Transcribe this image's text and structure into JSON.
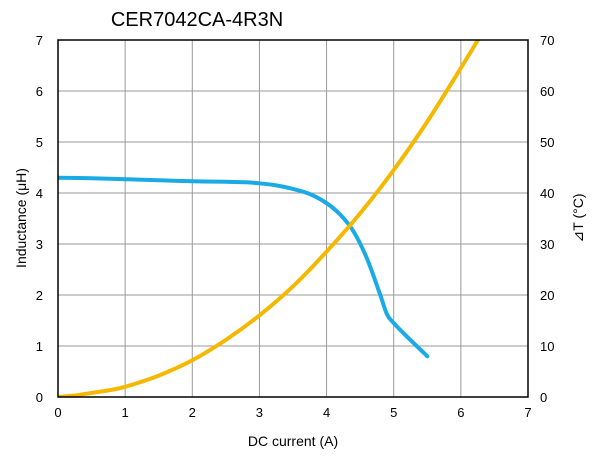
{
  "chart_data": {
    "type": "line",
    "title": "CER7042CA-4R3N",
    "xlabel": "DC current (A)",
    "ylabel": "Inductance (μH)",
    "y2label": "⊿T (°C)",
    "xlim": [
      0,
      7
    ],
    "ylim": [
      0,
      7
    ],
    "y2lim": [
      0,
      70
    ],
    "x_ticks": [
      "0",
      "1",
      "2",
      "3",
      "4",
      "5",
      "6",
      "7"
    ],
    "y_ticks": [
      "0",
      "1",
      "2",
      "3",
      "4",
      "5",
      "6",
      "7"
    ],
    "y2_ticks": [
      "0",
      "10",
      "20",
      "30",
      "40",
      "50",
      "60",
      "70"
    ],
    "grid": true,
    "series": [
      {
        "axis": "left",
        "color": "#1aaae6",
        "x": [
          0,
          0.5,
          1,
          1.5,
          2,
          2.5,
          2.8,
          3.0,
          3.25,
          3.5,
          3.75,
          4.0,
          4.2,
          4.4,
          4.6,
          4.8,
          4.9,
          5.0,
          5.2,
          5.5
        ],
        "y": [
          4.3,
          4.29,
          4.27,
          4.25,
          4.23,
          4.22,
          4.21,
          4.19,
          4.15,
          4.08,
          3.98,
          3.8,
          3.58,
          3.25,
          2.72,
          2.0,
          1.62,
          1.45,
          1.18,
          0.8
        ]
      },
      {
        "axis": "right",
        "color": "#f5b800",
        "x": [
          0,
          0.25,
          0.5,
          0.75,
          1,
          1.5,
          2,
          2.5,
          3,
          3.5,
          4,
          4.5,
          5,
          5.5,
          6,
          6.3
        ],
        "y": [
          0,
          0.3,
          0.8,
          1.3,
          2,
          4.2,
          7.2,
          11.2,
          16,
          21.7,
          28.5,
          36,
          44.5,
          54,
          64.5,
          71
        ]
      }
    ]
  },
  "colors": {
    "grid": "#9a9a9a",
    "frame": "#000000"
  }
}
